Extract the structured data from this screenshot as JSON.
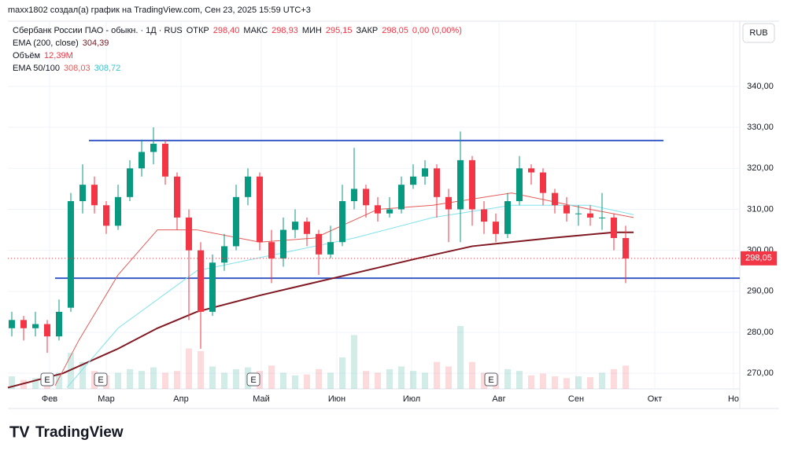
{
  "header": {
    "credit": "maxx1802 создал(а) график на TradingView.com, Сен 23, 2025 15:59 UTC+3",
    "currency": "RUB",
    "logo": "TradingView"
  },
  "chart_data": {
    "type": "candlestick",
    "symbol": "Сбербанк России ПАО - обыкн. · 1Д · RUS",
    "ohlc_legend": [
      {
        "name": "ОТКР",
        "value": {
          "value": 298.4,
          "label": "298,40"
        }
      },
      {
        "name": "МАКС",
        "value": {
          "value": 298.93,
          "label": "298,93"
        }
      },
      {
        "name": "МИН",
        "value": {
          "value": 295.15,
          "label": "295,15"
        }
      },
      {
        "name": "ЗАКР",
        "value": {
          "value": 298.05,
          "label": "298,05"
        }
      }
    ],
    "change": "0,00 (0,00%)",
    "last_price": {
      "value": 298.05,
      "label": "298,05"
    },
    "indicators": [
      {
        "name": "EMA (200, close)",
        "value_labels": [
          "304,39"
        ],
        "color": "#801922",
        "x": [
          0,
          14,
          28,
          38,
          48,
          64,
          84,
          104,
          118,
          138,
          154,
          159
        ],
        "values": [
          266.5,
          270,
          276,
          281,
          285,
          289,
          293.5,
          298,
          301,
          303,
          304.4,
          304.4
        ]
      },
      {
        "name": "EMA 50/100",
        "value_labels": [
          "308,03",
          "308,72"
        ],
        "series": [
          {
            "color": "#e35b57",
            "x": [
              12,
              18,
              28,
              38,
              48,
              64,
              78,
              94,
              108,
              128,
              148,
              159
            ],
            "values": [
              267,
              278,
              294,
              305,
              305,
              302,
              303,
              310,
              311,
              314,
              310,
              308
            ]
          },
          {
            "color": "#7fe3ea",
            "x": [
              15,
              28,
              48,
              68,
              88,
              108,
              128,
              148,
              159
            ],
            "values": [
              266.5,
              281,
              295,
              299,
              303,
              308,
              311,
              311,
              308.7
            ]
          }
        ]
      }
    ],
    "volume_legend": {
      "name": "Объём",
      "value_label": "12,39M"
    },
    "up_color": "#089981",
    "down_color": "#f23645",
    "x": [
      1,
      4,
      7,
      10,
      13,
      16,
      19,
      22,
      25,
      28,
      31,
      34,
      37,
      40,
      43,
      46,
      49,
      52,
      55,
      58,
      61,
      64,
      67,
      70,
      73,
      76,
      79,
      82,
      85,
      88,
      91,
      94,
      97,
      100,
      103,
      106,
      109,
      112,
      115,
      118,
      121,
      124,
      127,
      130,
      133,
      136,
      139,
      142,
      145,
      148,
      151,
      154,
      157
    ],
    "open": [
      281,
      283,
      281,
      282,
      279,
      286,
      312,
      316,
      311,
      306,
      313,
      320,
      324,
      326,
      318,
      308,
      300,
      285,
      297,
      301,
      313,
      318,
      302,
      298,
      305,
      307,
      304,
      299,
      302,
      312,
      315,
      311,
      309,
      310,
      316,
      318,
      320,
      313,
      310,
      322,
      310,
      307,
      304,
      312,
      320,
      319,
      314,
      311,
      309,
      309,
      308,
      308,
      303
    ],
    "high": [
      285,
      284,
      285,
      283,
      288,
      314,
      321,
      318,
      312,
      316,
      322,
      327,
      330,
      327,
      319,
      310,
      302,
      299,
      304,
      316,
      320,
      319,
      305,
      308,
      310,
      308,
      305,
      306,
      316,
      325,
      316,
      313,
      313,
      318,
      321,
      322,
      321,
      315,
      329,
      323,
      312,
      309,
      314,
      323,
      321,
      320,
      315,
      313,
      311,
      311,
      314,
      309,
      306
    ],
    "low": [
      279,
      278,
      279,
      275,
      278,
      285,
      309,
      309,
      304,
      305,
      312,
      318,
      321,
      316,
      305,
      283,
      276,
      284,
      295,
      300,
      311,
      300,
      292,
      296,
      303,
      301,
      294,
      298,
      301,
      310,
      308,
      307,
      308,
      309,
      315,
      316,
      308,
      302,
      302,
      306,
      304,
      302,
      303,
      311,
      316,
      311,
      309,
      307,
      306,
      306,
      305,
      300,
      292
    ],
    "close": [
      283,
      281,
      282,
      279,
      285,
      312,
      316,
      311,
      306,
      313,
      320,
      324,
      326,
      318,
      308,
      300,
      285,
      297,
      301,
      313,
      318,
      302,
      298,
      305,
      307,
      304,
      299,
      302,
      312,
      315,
      311,
      309,
      310,
      316,
      318,
      320,
      313,
      310,
      322,
      310,
      307,
      304,
      312,
      320,
      319,
      314,
      311,
      309,
      309,
      308,
      308,
      303,
      298
    ],
    "volume": [
      14,
      10,
      12,
      11,
      18,
      40,
      30,
      20,
      15,
      18,
      22,
      20,
      24,
      18,
      20,
      45,
      42,
      25,
      18,
      22,
      24,
      20,
      26,
      18,
      15,
      16,
      22,
      18,
      35,
      60,
      20,
      18,
      22,
      25,
      20,
      18,
      30,
      25,
      70,
      30,
      18,
      16,
      22,
      20,
      15,
      17,
      14,
      12,
      14,
      13,
      18,
      22,
      26
    ],
    "levels": [
      {
        "value": 326.8,
        "x": [
          20.6,
          166.6
        ],
        "color": "#3a5bc7"
      },
      {
        "value": 293.2,
        "x": [
          12,
          186
        ],
        "color": "#3a5bc7"
      }
    ],
    "xlim": [
      0,
      186
    ],
    "ylim": [
      266.2,
      355.9
    ],
    "yticks": [
      {
        "value": 270,
        "label": "270,00"
      },
      {
        "value": 280,
        "label": "280,00"
      },
      {
        "value": 290,
        "label": "290,00"
      },
      {
        "value": 300,
        "label": "300,00"
      },
      {
        "value": 310,
        "label": "310,00"
      },
      {
        "value": 320,
        "label": "320,00"
      },
      {
        "value": 330,
        "label": "330,00"
      },
      {
        "value": 340,
        "label": "340,00"
      }
    ],
    "xticks": [
      {
        "value": 10.6,
        "label": "Фев"
      },
      {
        "value": 25,
        "label": "Мар"
      },
      {
        "value": 44,
        "label": "Апр"
      },
      {
        "value": 64.4,
        "label": "Май"
      },
      {
        "value": 83.6,
        "label": "Июн"
      },
      {
        "value": 102.6,
        "label": "Июл"
      },
      {
        "value": 124.8,
        "label": "Авг"
      },
      {
        "value": 144.4,
        "label": "Сен"
      },
      {
        "value": 164.4,
        "label": "Окт"
      },
      {
        "value": 184.4,
        "label": "Но"
      }
    ],
    "events": [
      {
        "x": 10,
        "label": "E"
      },
      {
        "x": 23.6,
        "label": "E"
      },
      {
        "x": 62.4,
        "label": "E"
      },
      {
        "x": 122.8,
        "label": "E"
      }
    ]
  }
}
